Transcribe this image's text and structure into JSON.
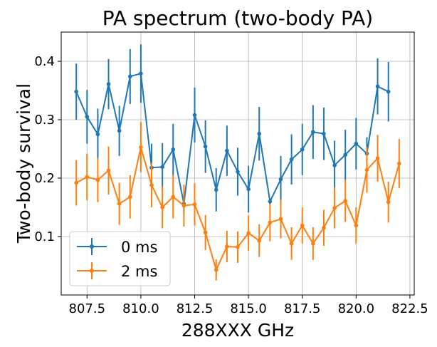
{
  "chart_data": {
    "type": "line",
    "title": "PA spectrum (two-body PA)",
    "xlabel": "288XXX GHz",
    "ylabel": "Two-body survival",
    "xlim": [
      806.3,
      822.7
    ],
    "ylim": [
      0.0,
      0.45
    ],
    "xticks": [
      807.5,
      810.0,
      812.5,
      815.0,
      817.5,
      820.0,
      822.5
    ],
    "xtick_labels": [
      "807.5",
      "810.0",
      "812.5",
      "815.0",
      "817.5",
      "820.0",
      "822.5"
    ],
    "yticks": [
      0.1,
      0.2,
      0.3,
      0.4
    ],
    "ytick_labels": [
      "0.1",
      "0.2",
      "0.3",
      "0.4"
    ],
    "grid": true,
    "legend_position": "lower-left",
    "series": [
      {
        "name": "0 ms",
        "color": "#1f77b4",
        "points": [
          {
            "x": 807.0,
            "y": 0.348,
            "err": 0.048
          },
          {
            "x": 807.5,
            "y": 0.305,
            "err": 0.046
          },
          {
            "x": 808.0,
            "y": 0.275,
            "err": 0.044
          },
          {
            "x": 808.5,
            "y": 0.361,
            "err": 0.043
          },
          {
            "x": 809.0,
            "y": 0.281,
            "err": 0.043
          },
          {
            "x": 809.5,
            "y": 0.374,
            "err": 0.047
          },
          {
            "x": 810.0,
            "y": 0.379,
            "err": 0.05
          },
          {
            "x": 810.5,
            "y": 0.218,
            "err": 0.041
          },
          {
            "x": 811.0,
            "y": 0.219,
            "err": 0.041
          },
          {
            "x": 811.5,
            "y": 0.249,
            "err": 0.044
          },
          {
            "x": 812.0,
            "y": 0.156,
            "err": 0.015
          },
          {
            "x": 812.5,
            "y": 0.308,
            "err": 0.047
          },
          {
            "x": 813.0,
            "y": 0.254,
            "err": 0.045
          },
          {
            "x": 813.5,
            "y": 0.18,
            "err": 0.037
          },
          {
            "x": 814.0,
            "y": 0.247,
            "err": 0.043
          },
          {
            "x": 814.5,
            "y": 0.211,
            "err": 0.041
          },
          {
            "x": 815.0,
            "y": 0.181,
            "err": 0.04
          },
          {
            "x": 815.5,
            "y": 0.276,
            "err": 0.046
          },
          {
            "x": 816.0,
            "y": 0.16,
            "err": 0.005
          },
          {
            "x": 816.5,
            "y": 0.198,
            "err": 0.04
          },
          {
            "x": 817.0,
            "y": 0.232,
            "err": 0.043
          },
          {
            "x": 817.5,
            "y": 0.249,
            "err": 0.044
          },
          {
            "x": 818.0,
            "y": 0.279,
            "err": 0.046
          },
          {
            "x": 818.5,
            "y": 0.276,
            "err": 0.045
          },
          {
            "x": 819.0,
            "y": 0.222,
            "err": 0.042
          },
          {
            "x": 819.5,
            "y": 0.24,
            "err": 0.043
          },
          {
            "x": 820.0,
            "y": 0.259,
            "err": 0.044
          },
          {
            "x": 820.5,
            "y": 0.242,
            "err": 0.028
          },
          {
            "x": 821.0,
            "y": 0.357,
            "err": 0.048
          },
          {
            "x": 821.5,
            "y": 0.348,
            "err": 0.051
          }
        ]
      },
      {
        "name": "2 ms",
        "color": "#ff7f0e",
        "points": [
          {
            "x": 807.0,
            "y": 0.192,
            "err": 0.039
          },
          {
            "x": 807.5,
            "y": 0.202,
            "err": 0.04
          },
          {
            "x": 808.0,
            "y": 0.197,
            "err": 0.038
          },
          {
            "x": 808.5,
            "y": 0.213,
            "err": 0.041
          },
          {
            "x": 809.0,
            "y": 0.156,
            "err": 0.036
          },
          {
            "x": 809.5,
            "y": 0.168,
            "err": 0.037
          },
          {
            "x": 810.0,
            "y": 0.253,
            "err": 0.043
          },
          {
            "x": 810.5,
            "y": 0.188,
            "err": 0.038
          },
          {
            "x": 811.0,
            "y": 0.15,
            "err": 0.036
          },
          {
            "x": 811.5,
            "y": 0.168,
            "err": 0.037
          },
          {
            "x": 812.0,
            "y": 0.153,
            "err": 0.036
          },
          {
            "x": 812.5,
            "y": 0.155,
            "err": 0.036
          },
          {
            "x": 813.0,
            "y": 0.107,
            "err": 0.03
          },
          {
            "x": 813.5,
            "y": 0.043,
            "err": 0.018
          },
          {
            "x": 814.0,
            "y": 0.083,
            "err": 0.027
          },
          {
            "x": 814.5,
            "y": 0.082,
            "err": 0.027
          },
          {
            "x": 815.0,
            "y": 0.106,
            "err": 0.03
          },
          {
            "x": 815.5,
            "y": 0.093,
            "err": 0.028
          },
          {
            "x": 816.0,
            "y": 0.124,
            "err": 0.032
          },
          {
            "x": 816.5,
            "y": 0.13,
            "err": 0.033
          },
          {
            "x": 817.0,
            "y": 0.088,
            "err": 0.028
          },
          {
            "x": 817.5,
            "y": 0.119,
            "err": 0.031
          },
          {
            "x": 818.0,
            "y": 0.088,
            "err": 0.028
          },
          {
            "x": 818.5,
            "y": 0.115,
            "err": 0.031
          },
          {
            "x": 819.0,
            "y": 0.149,
            "err": 0.035
          },
          {
            "x": 819.5,
            "y": 0.161,
            "err": 0.036
          },
          {
            "x": 820.0,
            "y": 0.119,
            "err": 0.031
          },
          {
            "x": 820.5,
            "y": 0.214,
            "err": 0.039
          },
          {
            "x": 821.0,
            "y": 0.234,
            "err": 0.04
          },
          {
            "x": 821.5,
            "y": 0.159,
            "err": 0.035
          },
          {
            "x": 822.0,
            "y": 0.225,
            "err": 0.042
          }
        ]
      }
    ]
  }
}
